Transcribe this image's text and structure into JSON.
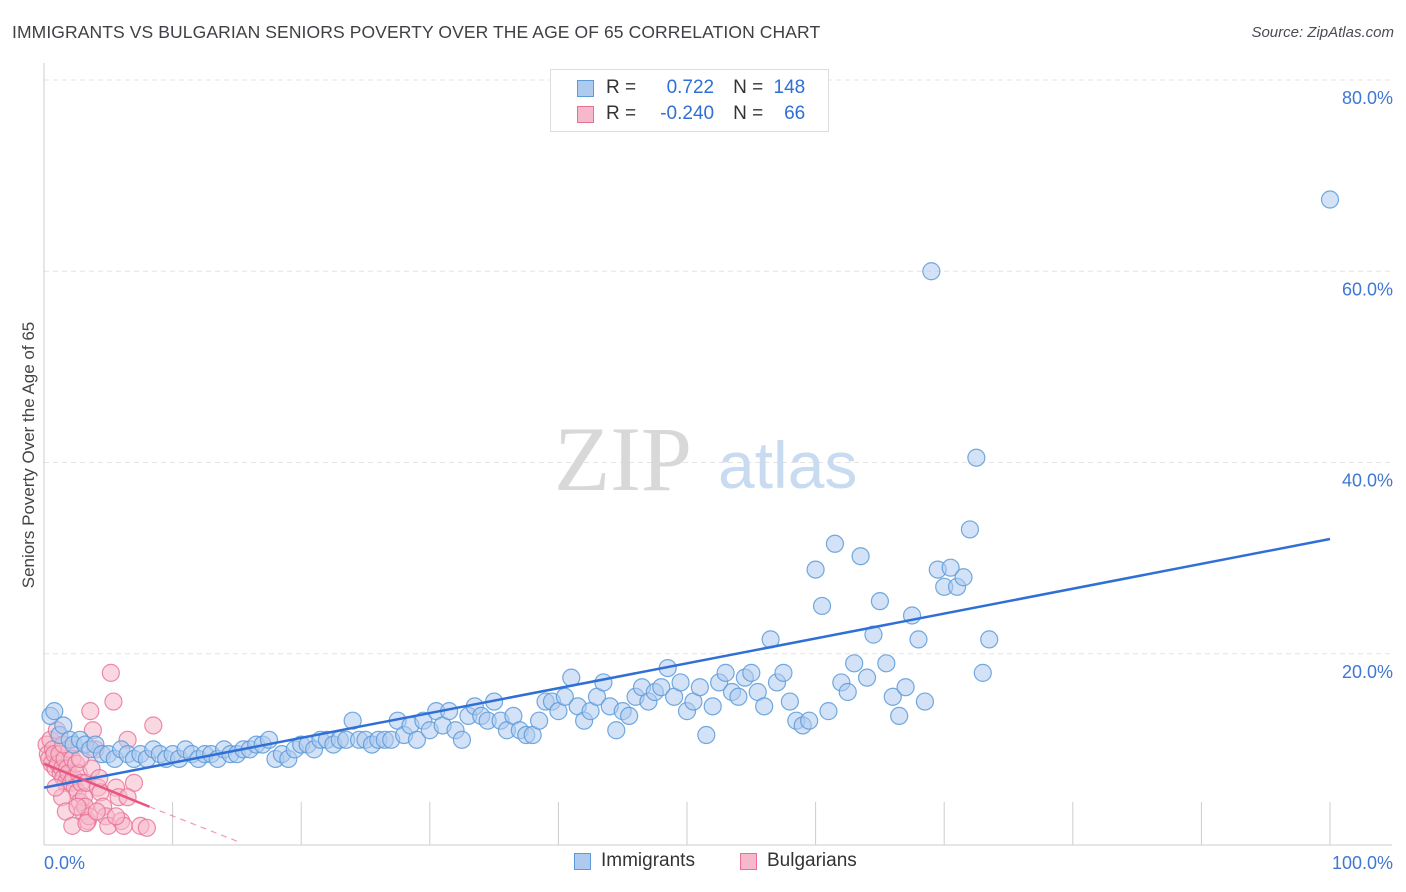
{
  "header": {
    "title": "IMMIGRANTS VS BULGARIAN SENIORS POVERTY OVER THE AGE OF 65 CORRELATION CHART",
    "source": "Source: ZipAtlas.com"
  },
  "watermark": {
    "zip": "ZIP",
    "atlas": "atlas"
  },
  "colors": {
    "blue": "#5b9bd9",
    "blue_fill": "#aecbef",
    "blue_line": "#2f6fd6",
    "pink": "#e86f95",
    "pink_fill": "#f6b8cb",
    "pink_line": "#e85580",
    "tick_text": "#3f77d2",
    "grid": "#e4e4e4"
  },
  "stats": {
    "immigrants": {
      "r_label": "R =",
      "r_value": "0.722",
      "n_label": "N =",
      "n_value": "148"
    },
    "bulgarians": {
      "r_label": "R =",
      "r_value": "-0.240",
      "n_label": "N =",
      "n_value": "66"
    }
  },
  "legend": {
    "immigrants": "Immigrants",
    "bulgarians": "Bulgarians"
  },
  "chart_data": {
    "type": "scatter",
    "title": "IMMIGRANTS VS BULGARIAN SENIORS POVERTY OVER THE AGE OF 65 CORRELATION CHART",
    "xlabel": "",
    "ylabel": "Seniors Poverty Over the Age of 65",
    "xlim": [
      0,
      100
    ],
    "ylim": [
      0,
      82
    ],
    "x_tick_labels": [
      "0.0%",
      "100.0%"
    ],
    "y_ticks": [
      20,
      40,
      60,
      80
    ],
    "y_tick_labels": [
      "20.0%",
      "40.0%",
      "60.0%",
      "80.0%"
    ],
    "grid": true,
    "series": [
      {
        "name": "Immigrants",
        "color": "#5b9bd9",
        "trendline": {
          "x0": 0,
          "y0": 6.0,
          "x1": 100,
          "y1": 32.0
        },
        "points": [
          [
            0.5,
            13.5
          ],
          [
            0.8,
            14
          ],
          [
            1.2,
            11.5
          ],
          [
            1.5,
            12.5
          ],
          [
            2,
            11
          ],
          [
            2.3,
            10.5
          ],
          [
            2.8,
            11
          ],
          [
            3.2,
            10.5
          ],
          [
            3.6,
            10
          ],
          [
            4,
            10.5
          ],
          [
            4.5,
            9.5
          ],
          [
            5,
            9.5
          ],
          [
            5.5,
            9
          ],
          [
            6,
            10
          ],
          [
            6.5,
            9.5
          ],
          [
            7,
            9
          ],
          [
            7.5,
            9.5
          ],
          [
            8,
            9
          ],
          [
            8.5,
            10
          ],
          [
            9,
            9.5
          ],
          [
            9.5,
            9
          ],
          [
            10,
            9.5
          ],
          [
            10.5,
            9
          ],
          [
            11,
            10
          ],
          [
            11.5,
            9.5
          ],
          [
            12,
            9
          ],
          [
            12.5,
            9.5
          ],
          [
            13,
            9.5
          ],
          [
            13.5,
            9
          ],
          [
            14,
            10
          ],
          [
            14.5,
            9.5
          ],
          [
            15,
            9.5
          ],
          [
            15.5,
            10
          ],
          [
            16,
            10
          ],
          [
            16.5,
            10.5
          ],
          [
            17,
            10.5
          ],
          [
            17.5,
            11
          ],
          [
            18,
            9
          ],
          [
            18.5,
            9.5
          ],
          [
            19,
            9
          ],
          [
            19.5,
            10
          ],
          [
            20,
            10.5
          ],
          [
            20.5,
            10.5
          ],
          [
            21,
            10
          ],
          [
            21.5,
            11
          ],
          [
            22,
            11
          ],
          [
            22.5,
            10.5
          ],
          [
            23,
            11
          ],
          [
            23.5,
            11
          ],
          [
            24,
            13
          ],
          [
            24.5,
            11
          ],
          [
            25,
            11
          ],
          [
            25.5,
            10.5
          ],
          [
            26,
            11
          ],
          [
            26.5,
            11
          ],
          [
            27,
            11
          ],
          [
            27.5,
            13
          ],
          [
            28,
            11.5
          ],
          [
            28.5,
            12.5
          ],
          [
            29,
            11
          ],
          [
            29.5,
            13
          ],
          [
            30,
            12
          ],
          [
            30.5,
            14
          ],
          [
            31,
            12.5
          ],
          [
            31.5,
            14
          ],
          [
            32,
            12
          ],
          [
            32.5,
            11
          ],
          [
            33,
            13.5
          ],
          [
            33.5,
            14.5
          ],
          [
            34,
            13.5
          ],
          [
            34.5,
            13
          ],
          [
            35,
            15
          ],
          [
            35.5,
            13
          ],
          [
            36,
            12
          ],
          [
            36.5,
            13.5
          ],
          [
            37,
            12
          ],
          [
            37.5,
            11.5
          ],
          [
            38,
            11.5
          ],
          [
            38.5,
            13
          ],
          [
            39,
            15
          ],
          [
            39.5,
            15
          ],
          [
            40,
            14
          ],
          [
            40.5,
            15.5
          ],
          [
            41,
            17.5
          ],
          [
            41.5,
            14.5
          ],
          [
            42,
            13
          ],
          [
            42.5,
            14
          ],
          [
            43,
            15.5
          ],
          [
            43.5,
            17
          ],
          [
            44,
            14.5
          ],
          [
            44.5,
            12
          ],
          [
            45,
            14
          ],
          [
            45.5,
            13.5
          ],
          [
            46,
            15.5
          ],
          [
            46.5,
            16.5
          ],
          [
            47,
            15
          ],
          [
            47.5,
            16
          ],
          [
            48,
            16.5
          ],
          [
            48.5,
            18.5
          ],
          [
            49,
            15.5
          ],
          [
            49.5,
            17
          ],
          [
            50,
            14
          ],
          [
            50.5,
            15
          ],
          [
            51,
            16.5
          ],
          [
            51.5,
            11.5
          ],
          [
            52,
            14.5
          ],
          [
            52.5,
            17
          ],
          [
            53,
            18
          ],
          [
            53.5,
            16
          ],
          [
            54,
            15.5
          ],
          [
            54.5,
            17.5
          ],
          [
            55,
            18
          ],
          [
            55.5,
            16
          ],
          [
            56,
            14.5
          ],
          [
            56.5,
            21.5
          ],
          [
            57,
            17
          ],
          [
            57.5,
            18
          ],
          [
            58,
            15
          ],
          [
            58.5,
            13
          ],
          [
            59,
            12.5
          ],
          [
            59.5,
            13
          ],
          [
            60,
            28.8
          ],
          [
            60.5,
            25
          ],
          [
            61,
            14
          ],
          [
            61.5,
            31.5
          ],
          [
            62,
            17
          ],
          [
            62.5,
            16
          ],
          [
            63,
            19
          ],
          [
            63.5,
            30.2
          ],
          [
            64,
            17.5
          ],
          [
            64.5,
            22
          ],
          [
            65,
            25.5
          ],
          [
            65.5,
            19
          ],
          [
            66,
            15.5
          ],
          [
            66.5,
            13.5
          ],
          [
            67,
            16.5
          ],
          [
            67.5,
            24
          ],
          [
            68,
            21.5
          ],
          [
            68.5,
            15
          ],
          [
            69,
            60
          ],
          [
            69.5,
            28.8
          ],
          [
            70,
            27
          ],
          [
            70.5,
            29
          ],
          [
            71,
            27
          ],
          [
            71.5,
            28
          ],
          [
            72,
            33
          ],
          [
            72.5,
            40.5
          ],
          [
            73,
            18
          ],
          [
            73.5,
            21.5
          ],
          [
            100,
            67.5
          ]
        ]
      },
      {
        "name": "Bulgarians",
        "color": "#e86f95",
        "trendline": {
          "x0": 0,
          "y0": 8.5,
          "x1": 8.2,
          "y1": 4.0,
          "dash_x1": 15.0,
          "dash_y1": 0.4
        },
        "points": [
          [
            0.2,
            10.5
          ],
          [
            0.3,
            9.5
          ],
          [
            0.4,
            9
          ],
          [
            0.5,
            11
          ],
          [
            0.6,
            8.5
          ],
          [
            0.7,
            10
          ],
          [
            0.8,
            9.5
          ],
          [
            0.9,
            8
          ],
          [
            1,
            12
          ],
          [
            1.1,
            8.5
          ],
          [
            1.2,
            9.5
          ],
          [
            1.3,
            7.5
          ],
          [
            1.4,
            8
          ],
          [
            1.5,
            7
          ],
          [
            1.6,
            9
          ],
          [
            1.7,
            6.5
          ],
          [
            1.8,
            8
          ],
          [
            1.9,
            7.5
          ],
          [
            2,
            10
          ],
          [
            2.1,
            6.5
          ],
          [
            2.2,
            9
          ],
          [
            2.3,
            7
          ],
          [
            2.4,
            6
          ],
          [
            2.5,
            8.5
          ],
          [
            2.6,
            5.5
          ],
          [
            2.7,
            7.5
          ],
          [
            2.8,
            4.5
          ],
          [
            2.9,
            6.5
          ],
          [
            3,
            3.5
          ],
          [
            3.1,
            5
          ],
          [
            3.2,
            4
          ],
          [
            3.3,
            6.5
          ],
          [
            3.4,
            2.5
          ],
          [
            3.5,
            3
          ],
          [
            3.6,
            14
          ],
          [
            3.8,
            12
          ],
          [
            4,
            10
          ],
          [
            4.2,
            6
          ],
          [
            4.4,
            5.5
          ],
          [
            4.6,
            4
          ],
          [
            4.8,
            3
          ],
          [
            5,
            2
          ],
          [
            5.2,
            18
          ],
          [
            5.4,
            15
          ],
          [
            5.6,
            6
          ],
          [
            5.8,
            5
          ],
          [
            6,
            2.5
          ],
          [
            6.2,
            2
          ],
          [
            6.5,
            11
          ],
          [
            7,
            6.5
          ],
          [
            7.5,
            2
          ],
          [
            8,
            1.8
          ],
          [
            8.5,
            12.5
          ],
          [
            1.4,
            5
          ],
          [
            1.7,
            3.5
          ],
          [
            2.2,
            2
          ],
          [
            2.6,
            4
          ],
          [
            3.3,
            2.3
          ],
          [
            3.7,
            8
          ],
          [
            4.3,
            7
          ],
          [
            0.9,
            6
          ],
          [
            1.5,
            10.5
          ],
          [
            2.8,
            9
          ],
          [
            5.6,
            3
          ],
          [
            6.5,
            5
          ],
          [
            4.1,
            3.5
          ]
        ]
      }
    ]
  }
}
